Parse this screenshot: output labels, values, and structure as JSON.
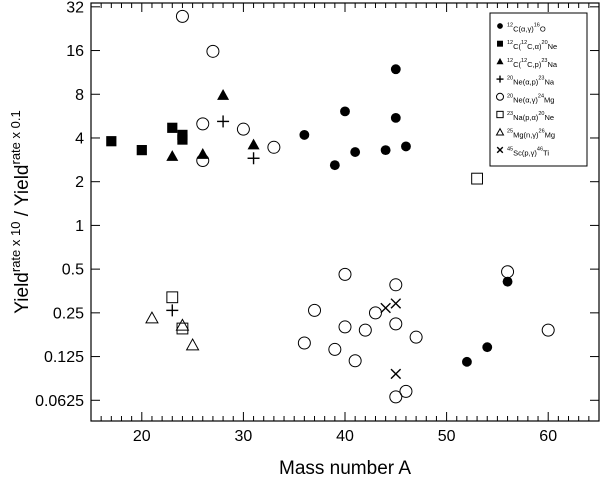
{
  "chart_data": {
    "type": "scatter",
    "xlabel": "Mass number A",
    "ylabel": {
      "base1": "Yield",
      "sup1": "rate x 10",
      "separator": " / ",
      "base2": "Yield",
      "sup2": "rate x 0.1"
    },
    "xlim": [
      15,
      65
    ],
    "ylim": [
      0.045,
      34
    ],
    "yscale": "log2",
    "xticks": [
      20,
      30,
      40,
      50,
      60
    ],
    "xtick_labels": [
      "20",
      "30",
      "40",
      "50",
      "60"
    ],
    "yticks": [
      0.0625,
      0.125,
      0.25,
      0.5,
      1,
      2,
      4,
      8,
      16,
      32
    ],
    "ytick_labels": [
      "0.0625",
      "0.125",
      "0.25",
      "0.5",
      "1",
      "2",
      "4",
      "8",
      "16",
      "32"
    ],
    "legend_position": "top-right",
    "series": [
      {
        "name": "12C(α,γ)16O",
        "legend": [
          {
            "t": "12",
            "s": "sup"
          },
          {
            "t": "C(α,γ)",
            "s": ""
          },
          {
            "t": "16",
            "s": "sup"
          },
          {
            "t": "O",
            "s": ""
          }
        ],
        "marker": "filled-circle",
        "points": [
          [
            36,
            4.2
          ],
          [
            39,
            2.6
          ],
          [
            40,
            6.1
          ],
          [
            41,
            3.2
          ],
          [
            44,
            3.3
          ],
          [
            45,
            5.5
          ],
          [
            45,
            11.9
          ],
          [
            46,
            3.5
          ],
          [
            52,
            0.115
          ],
          [
            54,
            0.145
          ],
          [
            56,
            0.41
          ]
        ]
      },
      {
        "name": "12C(12C,α)20Ne",
        "legend": [
          {
            "t": "12",
            "s": "sup"
          },
          {
            "t": "C(",
            "s": ""
          },
          {
            "t": "12",
            "s": "sup"
          },
          {
            "t": "C,α)",
            "s": ""
          },
          {
            "t": "20",
            "s": "sup"
          },
          {
            "t": "Ne",
            "s": ""
          }
        ],
        "marker": "filled-square",
        "points": [
          [
            17,
            3.8
          ],
          [
            20,
            3.3
          ],
          [
            23,
            4.7
          ],
          [
            24,
            3.9
          ],
          [
            24,
            4.2
          ]
        ]
      },
      {
        "name": "12C(12C,p)23Na",
        "legend": [
          {
            "t": "12",
            "s": "sup"
          },
          {
            "t": "C(",
            "s": ""
          },
          {
            "t": "12",
            "s": "sup"
          },
          {
            "t": "C,p)",
            "s": ""
          },
          {
            "t": "23",
            "s": "sup"
          },
          {
            "t": "Na",
            "s": ""
          }
        ],
        "marker": "filled-triangle",
        "points": [
          [
            23,
            3.0
          ],
          [
            26,
            3.1
          ],
          [
            28,
            7.9
          ],
          [
            31,
            3.6
          ]
        ]
      },
      {
        "name": "20Ne(α,p)23Na",
        "legend": [
          {
            "t": "20",
            "s": "sup"
          },
          {
            "t": "Ne(α,p)",
            "s": ""
          },
          {
            "t": "23",
            "s": "sup"
          },
          {
            "t": "Na",
            "s": ""
          }
        ],
        "marker": "plus",
        "points": [
          [
            28,
            5.2
          ],
          [
            31,
            2.9
          ],
          [
            23,
            0.26
          ]
        ]
      },
      {
        "name": "20Ne(α,γ)24Mg",
        "legend": [
          {
            "t": "20",
            "s": "sup"
          },
          {
            "t": "Ne(α,γ)",
            "s": ""
          },
          {
            "t": "24",
            "s": "sup"
          },
          {
            "t": "Mg",
            "s": ""
          }
        ],
        "marker": "open-circle",
        "points": [
          [
            24,
            27.5
          ],
          [
            26,
            2.8
          ],
          [
            26,
            5.0
          ],
          [
            27,
            15.8
          ],
          [
            30,
            4.6
          ],
          [
            33,
            3.45
          ],
          [
            36,
            0.155
          ],
          [
            37,
            0.26
          ],
          [
            39,
            0.14
          ],
          [
            40,
            0.46
          ],
          [
            40,
            0.2
          ],
          [
            41,
            0.117
          ],
          [
            42,
            0.19
          ],
          [
            43,
            0.25
          ],
          [
            45,
            0.39
          ],
          [
            45,
            0.21
          ],
          [
            45,
            0.066
          ],
          [
            46,
            0.072
          ],
          [
            47,
            0.17
          ],
          [
            56,
            0.48
          ],
          [
            60,
            0.19
          ]
        ]
      },
      {
        "name": "23Na(p,α)20Ne",
        "legend": [
          {
            "t": "23",
            "s": "sup"
          },
          {
            "t": "Na(p,α)",
            "s": ""
          },
          {
            "t": "20",
            "s": "sup"
          },
          {
            "t": "Ne",
            "s": ""
          }
        ],
        "marker": "open-square",
        "points": [
          [
            23,
            0.32
          ],
          [
            24,
            0.195
          ],
          [
            53,
            2.1
          ]
        ]
      },
      {
        "name": "25Mg(n,γ)26Mg",
        "legend": [
          {
            "t": "25",
            "s": "sup"
          },
          {
            "t": "Mg(n,γ)",
            "s": ""
          },
          {
            "t": "26",
            "s": "sup"
          },
          {
            "t": "Mg",
            "s": ""
          }
        ],
        "marker": "open-triangle",
        "points": [
          [
            21,
            0.23
          ],
          [
            24,
            0.205
          ],
          [
            25,
            0.15
          ]
        ]
      },
      {
        "name": "45Sc(p,γ)46Ti",
        "legend": [
          {
            "t": "45",
            "s": "sup"
          },
          {
            "t": "Sc(p,γ)",
            "s": ""
          },
          {
            "t": "46",
            "s": "sup"
          },
          {
            "t": "Ti",
            "s": ""
          }
        ],
        "marker": "cross",
        "points": [
          [
            44,
            0.27
          ],
          [
            45,
            0.29
          ],
          [
            45,
            0.095
          ]
        ]
      }
    ]
  }
}
